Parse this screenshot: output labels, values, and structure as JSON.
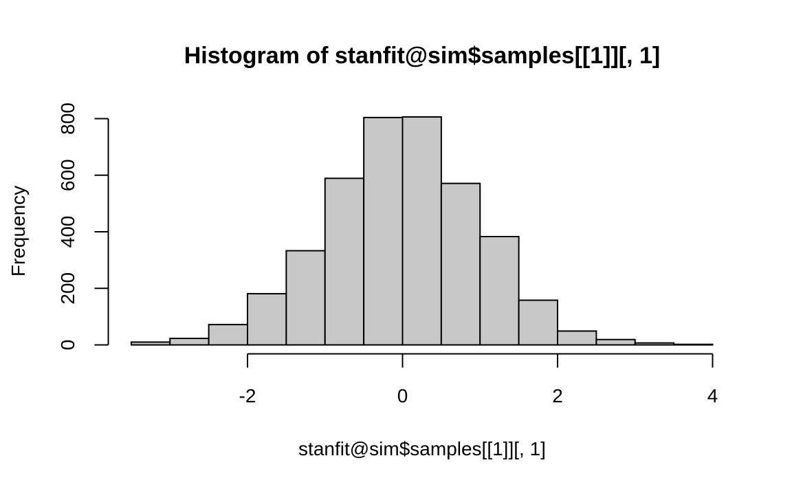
{
  "chart_data": {
    "type": "bar",
    "title": "Histogram of stanfit@sim$samples[[1]][, 1]",
    "xlabel": "stanfit@sim$samples[[1]][, 1]",
    "ylabel": "Frequency",
    "xlim": [
      -3.5,
      4.0
    ],
    "ylim": [
      0,
      800
    ],
    "x_ticks": [
      -2,
      0,
      2,
      4
    ],
    "y_ticks": [
      0,
      200,
      400,
      600,
      800
    ],
    "bins": [
      {
        "from": -3.5,
        "to": -3.0,
        "count": 10
      },
      {
        "from": -3.0,
        "to": -2.5,
        "count": 23
      },
      {
        "from": -2.5,
        "to": -2.0,
        "count": 72
      },
      {
        "from": -2.0,
        "to": -1.5,
        "count": 181
      },
      {
        "from": -1.5,
        "to": -1.0,
        "count": 333
      },
      {
        "from": -1.0,
        "to": -0.5,
        "count": 589
      },
      {
        "from": -0.5,
        "to": 0.0,
        "count": 804
      },
      {
        "from": 0.0,
        "to": 0.5,
        "count": 806
      },
      {
        "from": 0.5,
        "to": 1.0,
        "count": 571
      },
      {
        "from": 1.0,
        "to": 1.5,
        "count": 383
      },
      {
        "from": 1.5,
        "to": 2.0,
        "count": 158
      },
      {
        "from": 2.0,
        "to": 2.5,
        "count": 49
      },
      {
        "from": 2.5,
        "to": 3.0,
        "count": 19
      },
      {
        "from": 3.0,
        "to": 3.5,
        "count": 7
      },
      {
        "from": 3.5,
        "to": 4.0,
        "count": 2
      }
    ],
    "grid": false,
    "bar_fill": "#c8c8c8",
    "bar_stroke": "#000000"
  }
}
